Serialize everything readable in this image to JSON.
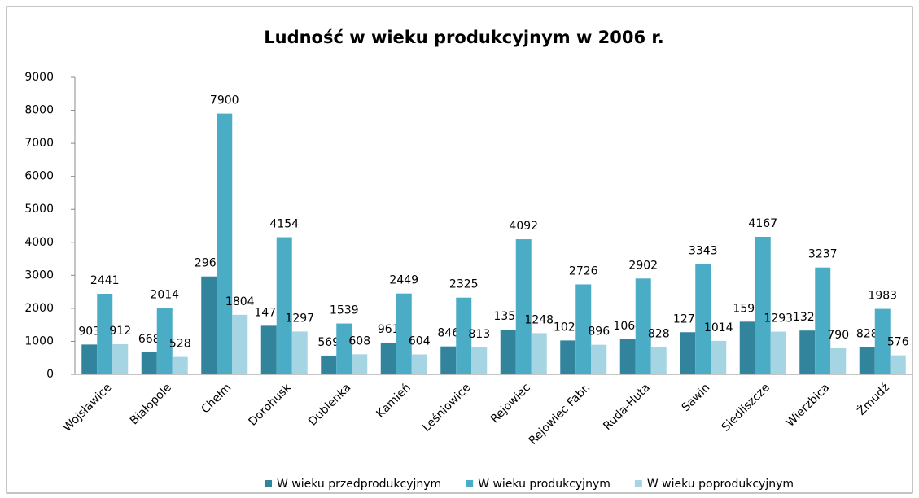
{
  "chart_data": {
    "type": "bar",
    "title": "Ludność w wieku produkcyjnym w 2006 r.",
    "categories": [
      "Wojsławice",
      "Białopole",
      "Chełm",
      "Dorohusk",
      "Dubienka",
      "Kamień",
      "Leśniowice",
      "Rejowiec",
      "Rejowiec Fabr.",
      "Ruda-Huta",
      "Sawin",
      "Siedliszcze",
      "Wierzbica",
      "Żmudź"
    ],
    "series": [
      {
        "name": "W wieku przedprodukcyjnym",
        "color": "#31849b",
        "values": [
          903,
          668,
          2966,
          1471,
          569,
          961,
          846,
          1351,
          1026,
          1064,
          1276,
          1595,
          1327,
          828
        ]
      },
      {
        "name": "W wieku produkcyjnym",
        "color": "#4bacc6",
        "values": [
          2441,
          2014,
          7900,
          4154,
          1539,
          2449,
          2325,
          4092,
          2726,
          2902,
          3343,
          4167,
          3237,
          1983
        ]
      },
      {
        "name": "W wieku poprodukcyjnym",
        "color": "#a5d5e2",
        "values": [
          912,
          528,
          1804,
          1297,
          608,
          604,
          813,
          1248,
          896,
          828,
          1014,
          1293,
          790,
          576
        ]
      }
    ],
    "ylim": [
      0,
      9000
    ],
    "yticks": [
      0,
      1000,
      2000,
      3000,
      4000,
      5000,
      6000,
      7000,
      8000,
      9000
    ],
    "grid": false,
    "legend": "bottom"
  }
}
